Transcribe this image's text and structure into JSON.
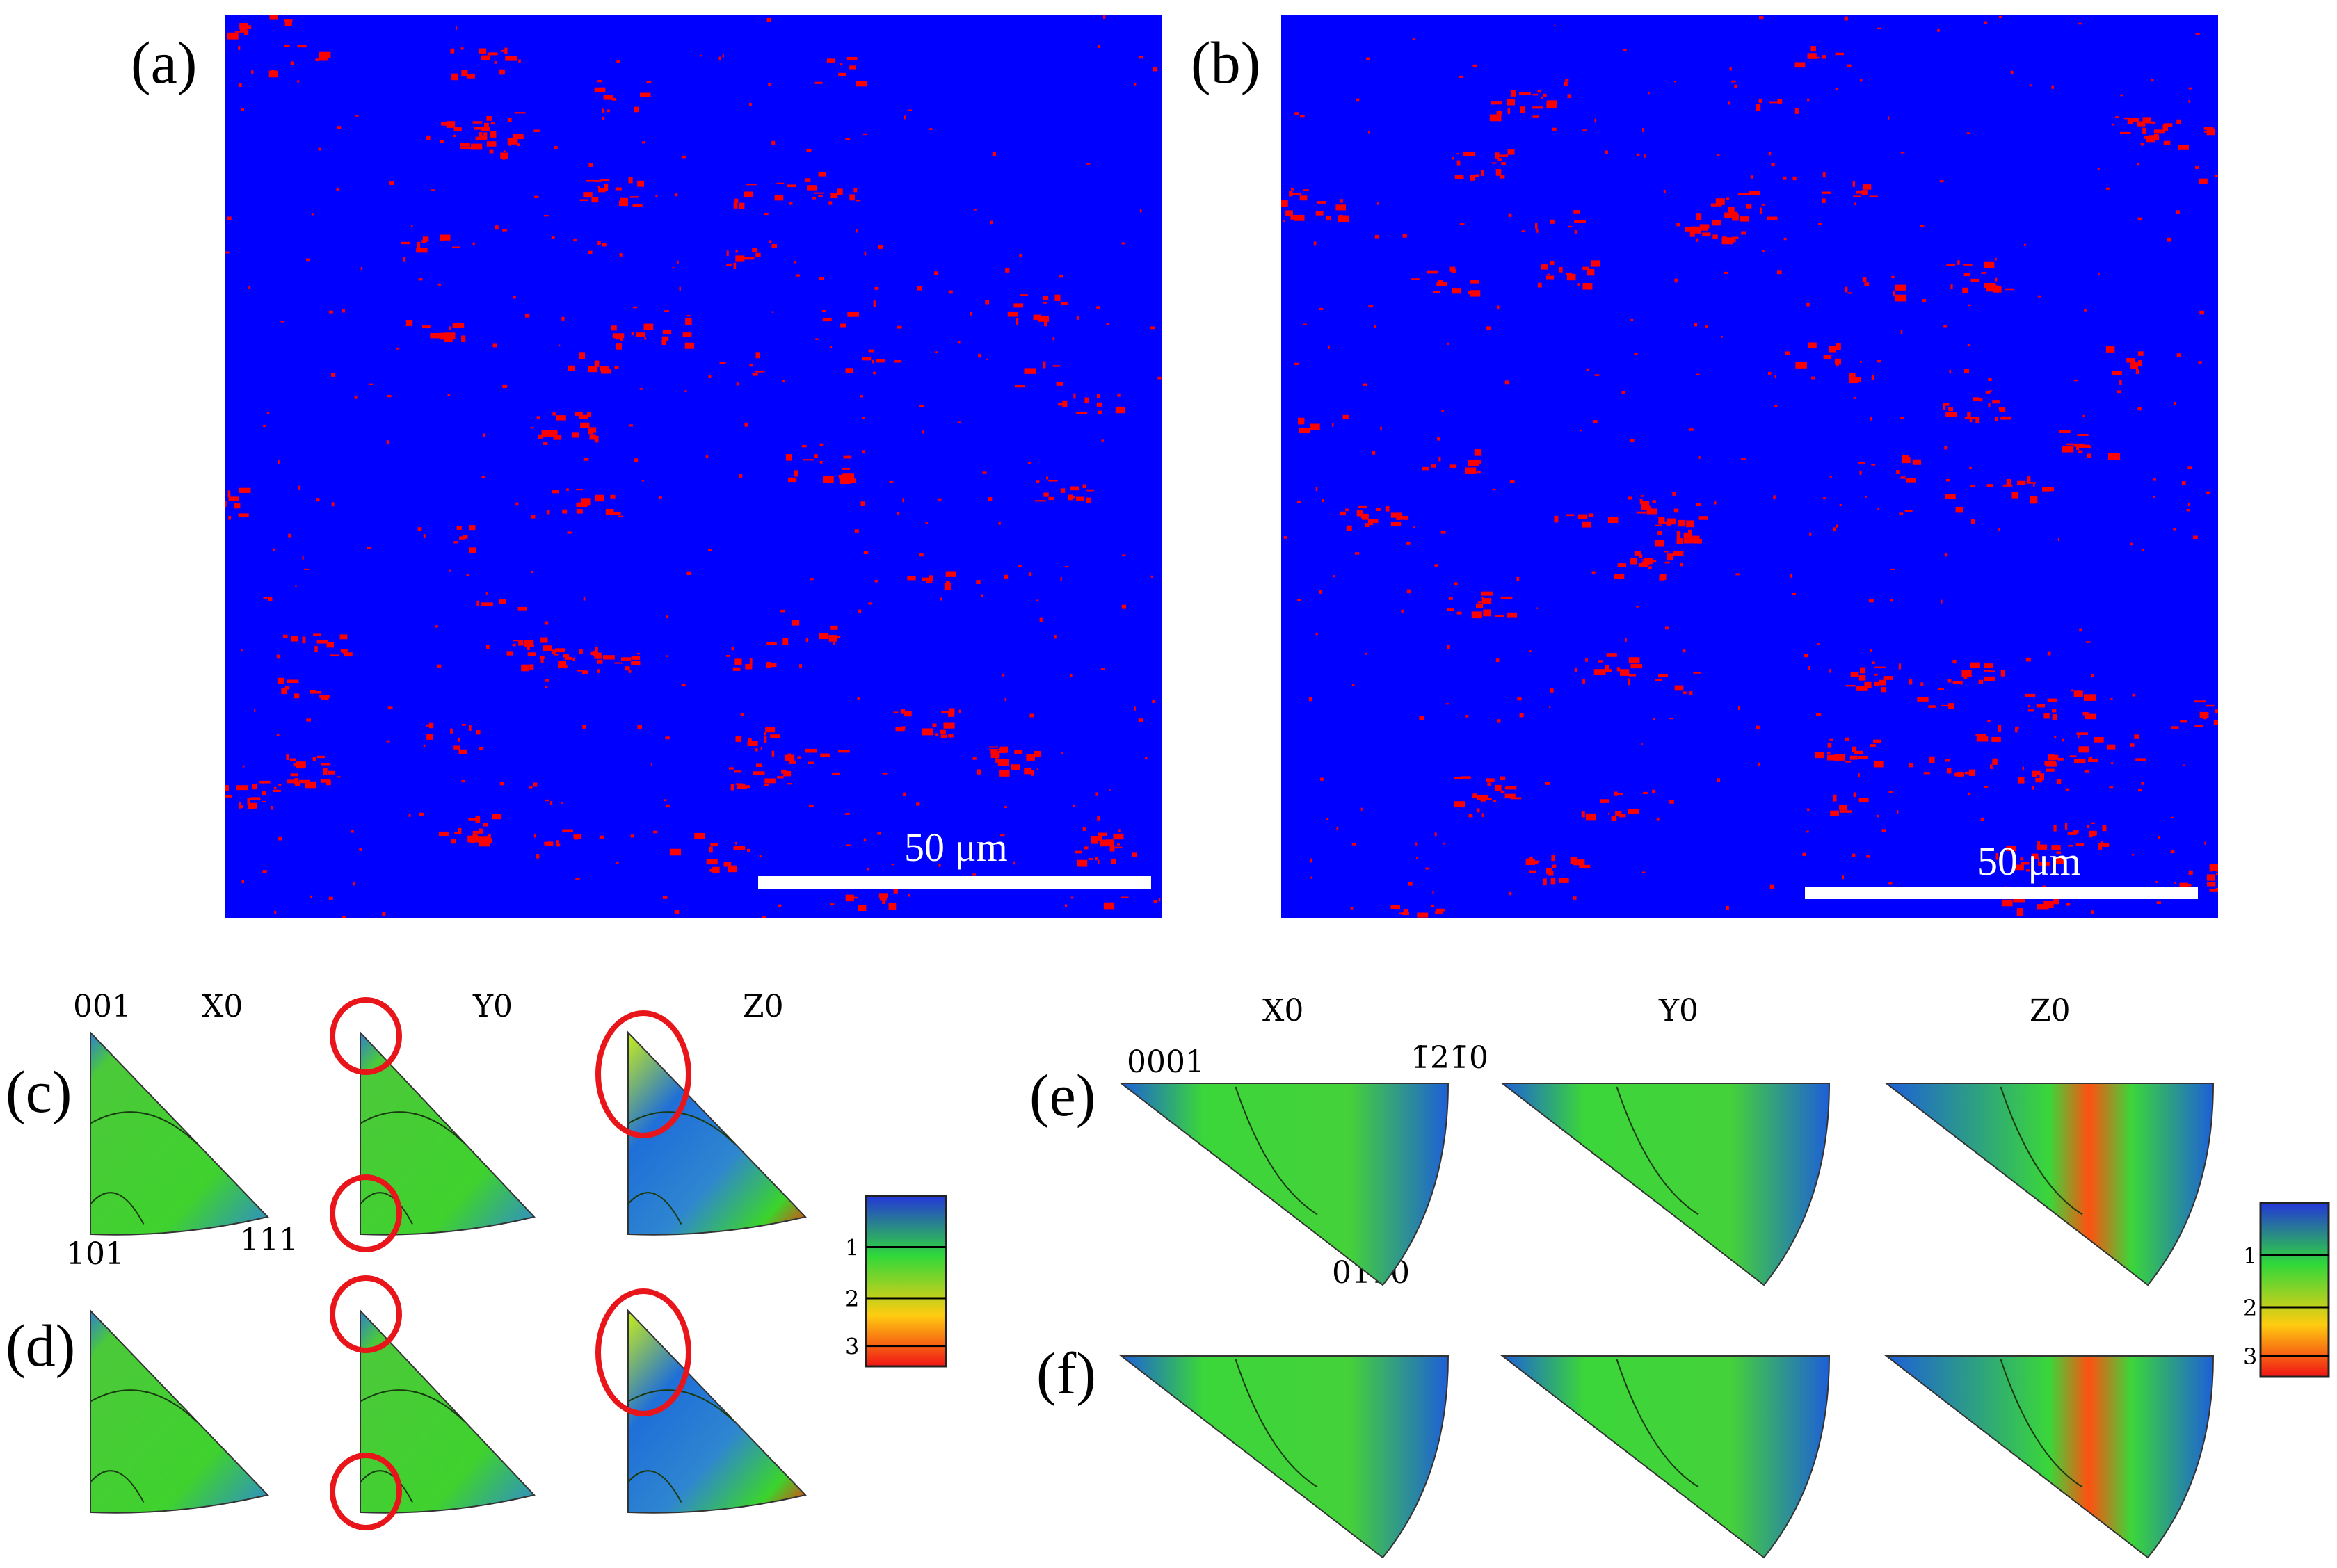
{
  "panels": {
    "a": "(a)",
    "b": "(b)",
    "c": "(c)",
    "d": "(d)",
    "e": "(e)",
    "f": "(f)"
  },
  "maps": {
    "background_color": "#0000ff",
    "phase_color": "#ff0000",
    "scale_bar_label": "50 μm"
  },
  "cubic_ipf": {
    "directions": [
      "X0",
      "Y0",
      "Z0"
    ],
    "corner_001": "001",
    "corner_101": "101",
    "corner_111": "111",
    "highlight_color": "#e8151b"
  },
  "hex_ipf": {
    "directions": [
      "X0",
      "Y0",
      "Z0"
    ],
    "corner_0001": "0001",
    "corner_1210": "1̄21̄0",
    "corner_0110": "011̄0"
  },
  "colorbar_left": {
    "ticks": [
      "1",
      "2",
      "3"
    ]
  },
  "colorbar_right": {
    "ticks": [
      "1",
      "2",
      "3"
    ]
  }
}
